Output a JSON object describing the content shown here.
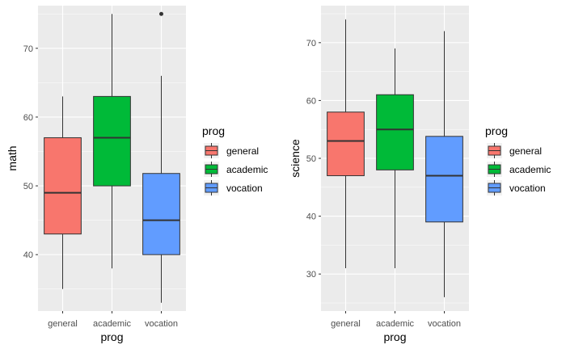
{
  "chart_data": [
    {
      "type": "boxplot",
      "xlabel": "prog",
      "ylabel": "math",
      "categories": [
        "general",
        "academic",
        "vocation"
      ],
      "ylim": [
        31.8,
        76.2
      ],
      "yticks": [
        40,
        50,
        60,
        70
      ],
      "colors": [
        "#F8766D",
        "#00BA38",
        "#619CFF"
      ],
      "boxes": [
        {
          "category": "general",
          "min": 35,
          "q1": 43,
          "median": 49,
          "q3": 57,
          "max": 63,
          "outliers": []
        },
        {
          "category": "academic",
          "min": 38,
          "q1": 50,
          "median": 57,
          "q3": 63,
          "max": 75,
          "outliers": []
        },
        {
          "category": "vocation",
          "min": 33,
          "q1": 40,
          "median": 45,
          "q3": 51.8,
          "max": 66,
          "outliers": [
            75
          ]
        }
      ],
      "legend": {
        "title": "prog",
        "items": [
          "general",
          "academic",
          "vocation"
        ],
        "position": "right"
      },
      "grid": true
    },
    {
      "type": "boxplot",
      "xlabel": "prog",
      "ylabel": "science",
      "categories": [
        "general",
        "academic",
        "vocation"
      ],
      "ylim": [
        23.6,
        76.4
      ],
      "yticks": [
        30,
        40,
        50,
        60,
        70
      ],
      "colors": [
        "#F8766D",
        "#00BA38",
        "#619CFF"
      ],
      "boxes": [
        {
          "category": "general",
          "min": 31,
          "q1": 47,
          "median": 53,
          "q3": 58,
          "max": 74,
          "outliers": []
        },
        {
          "category": "academic",
          "min": 31,
          "q1": 48,
          "median": 55,
          "q3": 61,
          "max": 69,
          "outliers": []
        },
        {
          "category": "vocation",
          "min": 26,
          "q1": 39,
          "median": 47,
          "q3": 53.8,
          "max": 72,
          "outliers": []
        }
      ],
      "legend": {
        "title": "prog",
        "items": [
          "general",
          "academic",
          "vocation"
        ],
        "position": "right"
      },
      "grid": true
    }
  ]
}
